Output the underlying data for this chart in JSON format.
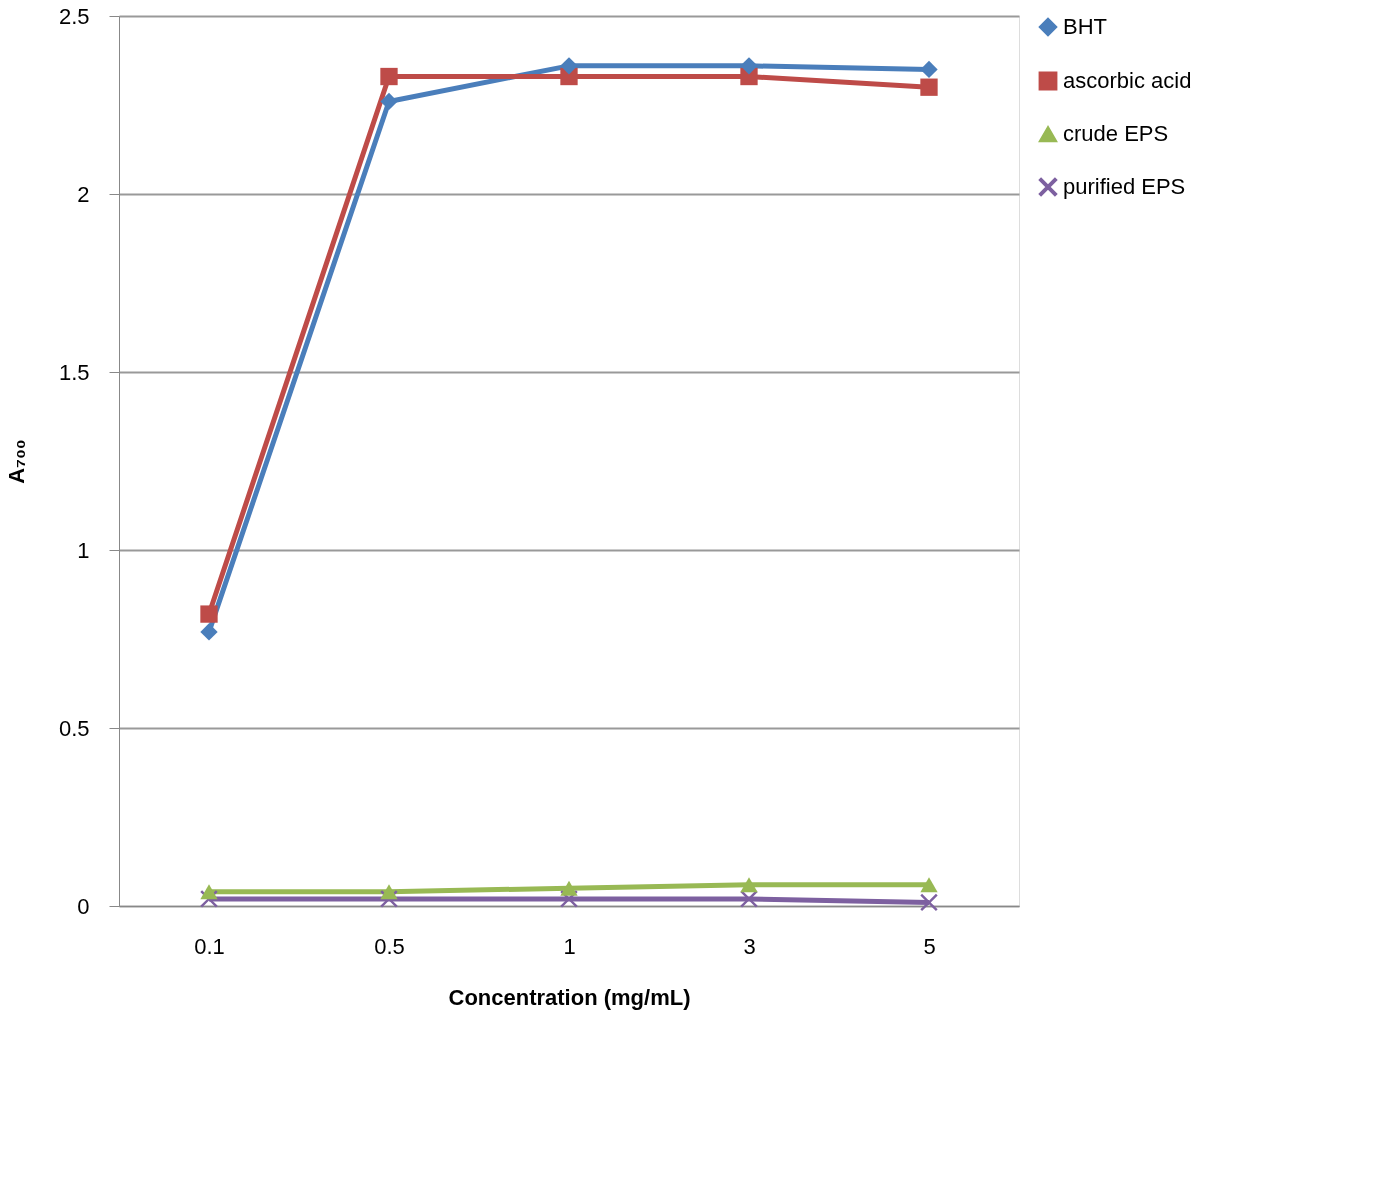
{
  "chart_data": {
    "type": "line",
    "xlabel": "Concentration (mg/mL)",
    "ylabel": "A₇₀₀",
    "categories": [
      "0.1",
      "0.5",
      "1",
      "3",
      "5"
    ],
    "series": [
      {
        "name": "BHT",
        "color": "#4a7ebb",
        "marker": "diamond",
        "values": [
          0.77,
          2.26,
          2.36,
          2.36,
          2.35
        ]
      },
      {
        "name": "ascorbic acid",
        "color": "#be4b48",
        "marker": "square",
        "values": [
          0.82,
          2.33,
          2.33,
          2.33,
          2.3
        ]
      },
      {
        "name": "crude EPS",
        "color": "#98b954",
        "marker": "triangle",
        "values": [
          0.04,
          0.04,
          0.05,
          0.06,
          0.06
        ]
      },
      {
        "name": "purified EPS",
        "color": "#7d60a0",
        "marker": "cross",
        "values": [
          0.02,
          0.02,
          0.02,
          0.02,
          0.01
        ]
      }
    ],
    "ylim": [
      0,
      2.5
    ],
    "yticks": [
      0,
      0.5,
      1,
      1.5,
      2,
      2.5
    ],
    "grid": "y",
    "legend": "right",
    "line_style": "solid"
  }
}
